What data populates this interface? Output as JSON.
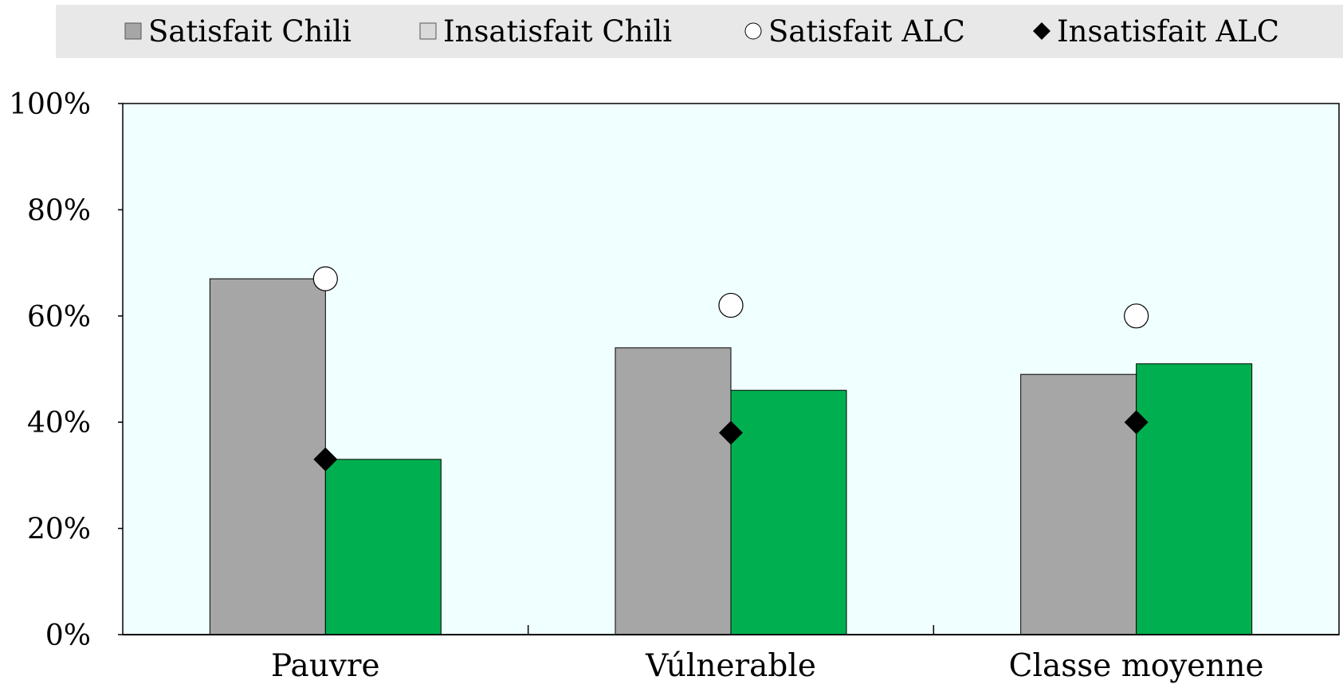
{
  "chart_data": {
    "type": "bar",
    "categories": [
      "Pauvre",
      "Vúlnerable",
      "Classe moyenne"
    ],
    "series": [
      {
        "name": "Satisfait Chili",
        "kind": "bar",
        "color": "#a6a6a6",
        "values": [
          67,
          54,
          49
        ]
      },
      {
        "name": "Insatisfait Chili",
        "kind": "bar",
        "color": "#00b050",
        "values": [
          33,
          46,
          51
        ]
      },
      {
        "name": "Satisfait ALC",
        "kind": "marker",
        "marker": "circle",
        "color": "#ffffff",
        "values": [
          67,
          62,
          60
        ]
      },
      {
        "name": "Insatisfait ALC",
        "kind": "marker",
        "marker": "diamond",
        "color": "#000000",
        "values": [
          33,
          38,
          40
        ]
      }
    ],
    "legend_swatches": {
      "Satisfait Chili": "#a6a6a6",
      "Insatisfait Chili": "#d9d9d9"
    },
    "ylim": [
      0,
      100
    ],
    "yticks": [
      0,
      20,
      40,
      60,
      80,
      100
    ],
    "ytick_labels": [
      "0%",
      "20%",
      "40%",
      "60%",
      "80%",
      "100%"
    ],
    "plot_background": "#f0ffff",
    "legend_background": "#e8e8e8",
    "legend_position": "top",
    "grid": false
  }
}
